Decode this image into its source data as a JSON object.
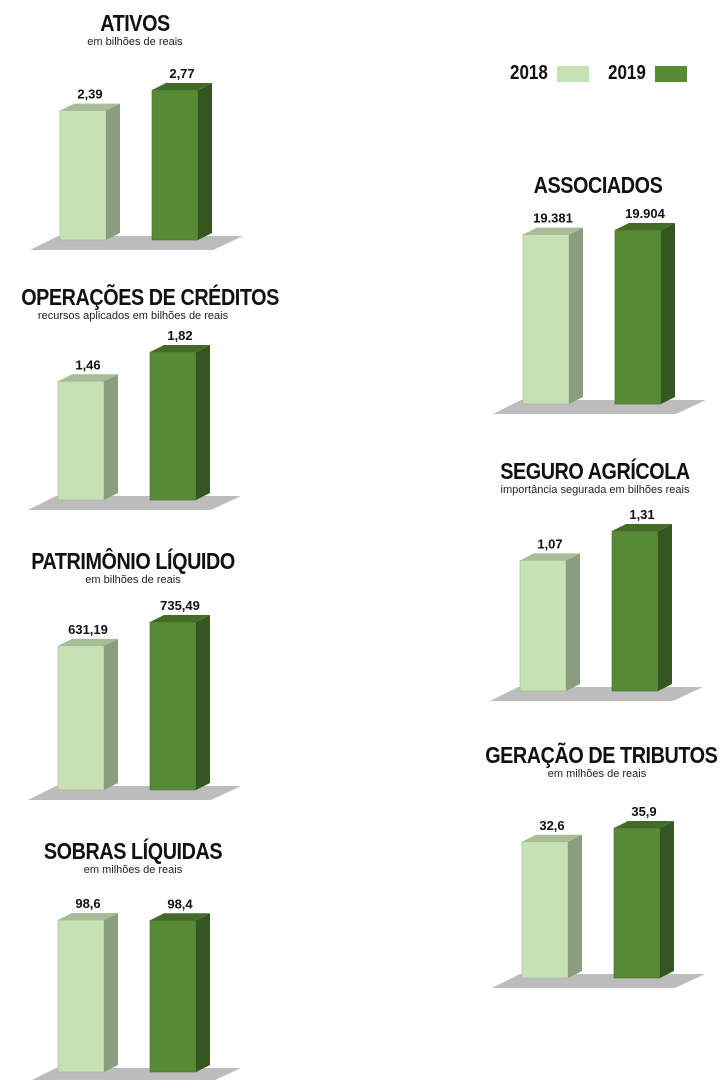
{
  "legend": {
    "y2018": "2018",
    "y2019": "2019"
  },
  "colors": {
    "light": "#c6e2b4",
    "dark": "#578a35"
  },
  "chart_data": [
    {
      "id": "ativos",
      "type": "bar",
      "title": "ATIVOS",
      "subtitle": "em bilhões de reais",
      "categories": [
        "2018",
        "2019"
      ],
      "values": [
        2.39,
        2.77
      ],
      "labels": [
        "2,39",
        "2,77"
      ]
    },
    {
      "id": "associados",
      "type": "bar",
      "title": "ASSOCIADOS",
      "subtitle": "",
      "categories": [
        "2018",
        "2019"
      ],
      "values": [
        19381,
        19904
      ],
      "labels": [
        "19.381",
        "19.904"
      ]
    },
    {
      "id": "operacoes",
      "type": "bar",
      "title": "OPERAÇÕES DE CRÉDITOS",
      "subtitle": "recursos aplicados em bilhões de reais",
      "categories": [
        "2018",
        "2019"
      ],
      "values": [
        1.46,
        1.82
      ],
      "labels": [
        "1,46",
        "1,82"
      ]
    },
    {
      "id": "seguro",
      "type": "bar",
      "title": "SEGURO AGRÍCOLA",
      "subtitle": "importância segurada em bilhões reais",
      "categories": [
        "2018",
        "2019"
      ],
      "values": [
        1.07,
        1.31
      ],
      "labels": [
        "1,07",
        "1,31"
      ]
    },
    {
      "id": "patrimonio",
      "type": "bar",
      "title": "PATRIMÔNIO LÍQUIDO",
      "subtitle": "em bilhões de reais",
      "categories": [
        "2018",
        "2019"
      ],
      "values": [
        631.19,
        735.49
      ],
      "labels": [
        "631,19",
        "735,49"
      ]
    },
    {
      "id": "tributos",
      "type": "bar",
      "title": "GERAÇÃO DE TRIBUTOS",
      "subtitle": "em milhões de reais",
      "categories": [
        "2018",
        "2019"
      ],
      "values": [
        32.6,
        35.9
      ],
      "labels": [
        "32,6",
        "35,9"
      ]
    },
    {
      "id": "sobras",
      "type": "bar",
      "title": "SOBRAS LÍQUIDAS",
      "subtitle": "em milhões de reais",
      "categories": [
        "2018",
        "2019"
      ],
      "values": [
        98.6,
        98.4
      ],
      "labels": [
        "98,6",
        "98,4"
      ]
    }
  ]
}
